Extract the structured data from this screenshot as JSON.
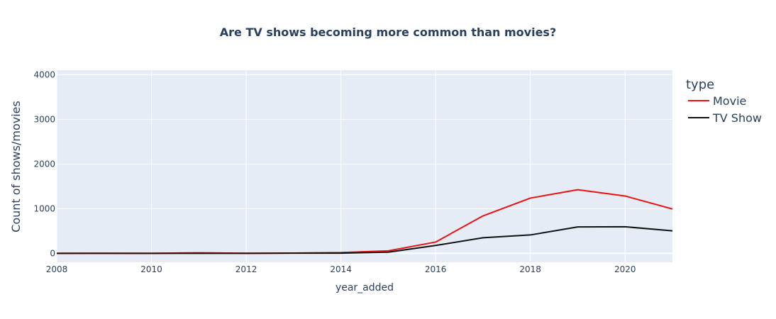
{
  "chart_data": {
    "type": "line",
    "title": "Are TV shows becoming more common than movies?",
    "xlabel": "year_added",
    "ylabel": "Count of shows/movies",
    "xlim": [
      2008,
      2021
    ],
    "ylim": [
      -200,
      4100
    ],
    "x_ticks": [
      2008,
      2010,
      2012,
      2014,
      2016,
      2018,
      2020
    ],
    "y_ticks": [
      0,
      1000,
      2000,
      3000,
      4000
    ],
    "grid": true,
    "background_color": "#e5ecf6",
    "legend": {
      "title": "type",
      "placement": "right"
    },
    "series": [
      {
        "name": "Movie",
        "color": "#ee1111",
        "x": [
          2008,
          2009,
          2010,
          2011,
          2012,
          2013,
          2014,
          2015,
          2016,
          2017,
          2018,
          2019,
          2020,
          2021
        ],
        "y": [
          1,
          2,
          1,
          13,
          3,
          6,
          19,
          56,
          253,
          839,
          1237,
          1424,
          1284,
          993
        ]
      },
      {
        "name": "TV Show",
        "color": "#111111",
        "x": [
          2008,
          2009,
          2010,
          2011,
          2012,
          2013,
          2014,
          2015,
          2016,
          2017,
          2018,
          2019,
          2020,
          2021
        ],
        "y": [
          1,
          0,
          0,
          0,
          0,
          5,
          5,
          26,
          176,
          349,
          412,
          592,
          595,
          505
        ]
      }
    ]
  }
}
